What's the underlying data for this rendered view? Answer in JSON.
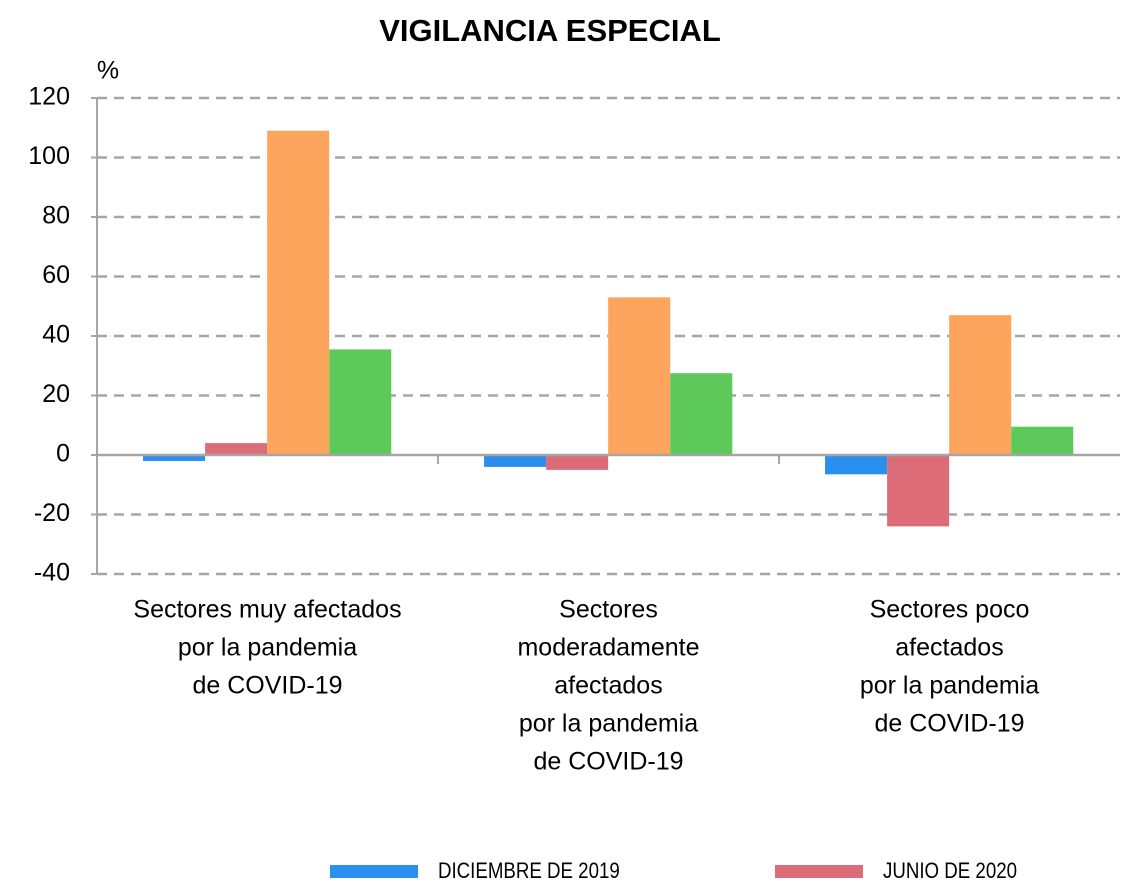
{
  "chart_data": {
    "type": "bar",
    "title": "VIGILANCIA ESPECIAL",
    "y_label": "%",
    "categories": [
      [
        "Sectores muy afectados",
        "por la pandemia",
        "de COVID-19"
      ],
      [
        "Sectores",
        "moderadamente",
        "afectados",
        "por la pandemia",
        "de COVID-19"
      ],
      [
        "Sectores poco",
        "afectados",
        "por la pandemia",
        "de COVID-19"
      ]
    ],
    "series": [
      {
        "name": "DICIEMBRE DE 2019",
        "color": "#2b8fef",
        "values": [
          -2,
          -4,
          -6.5
        ]
      },
      {
        "name": "JUNIO DE 2020",
        "color": "#dc6d78",
        "values": [
          4,
          -5,
          -24
        ]
      },
      {
        "color": "#fea55d",
        "values": [
          109,
          53,
          47
        ]
      },
      {
        "color": "#5dc95a",
        "values": [
          35.5,
          27.5,
          9.5
        ]
      }
    ],
    "ylim": [
      -40,
      120
    ],
    "yticks": [
      -40,
      -20,
      0,
      20,
      40,
      60,
      80,
      100,
      120
    ],
    "grid": true
  }
}
